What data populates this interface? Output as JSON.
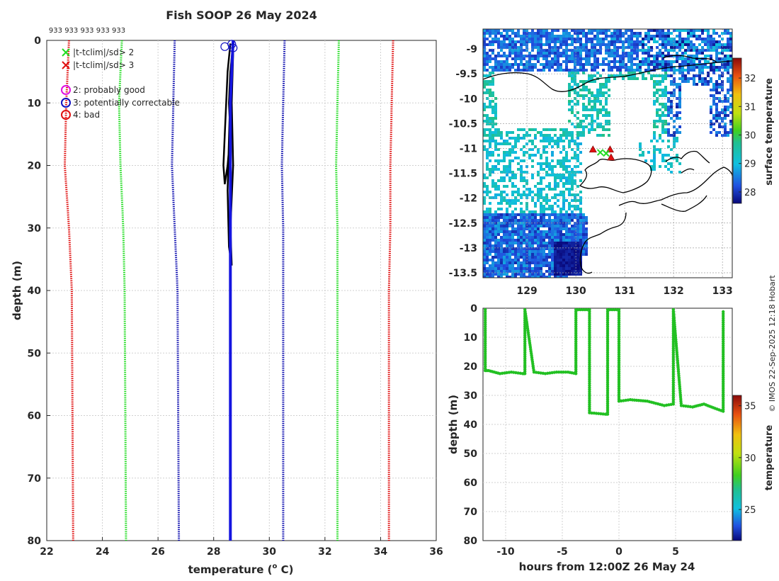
{
  "title": "Fish SOOP 26 May 2024",
  "ids_label": "933 933 933 933 933",
  "credit": "© IMOS 22-Sep-2025 12:18 Hobart",
  "chart_data": [
    {
      "id": "profile",
      "type": "line",
      "title": "Fish SOOP 26 May 2024",
      "xlabel": "temperature (",
      "xlabel_sup": "o",
      "xlabel_tail": " C)",
      "ylabel": "depth (m)",
      "xlim": [
        22,
        36
      ],
      "ylim": [
        80,
        0
      ],
      "xticks": [
        22,
        24,
        26,
        28,
        30,
        32,
        34,
        36
      ],
      "yticks": [
        0,
        10,
        20,
        30,
        40,
        50,
        60,
        70,
        80
      ],
      "legend": [
        {
          "label": "|t-tclim|/sd> 2",
          "marker": "x",
          "color": "#22dd22"
        },
        {
          "label": "|t-tclim|/sd> 3",
          "marker": "x",
          "color": "#e01010"
        },
        {
          "label": "2: probably good",
          "marker": "o",
          "color": "#e010e0"
        },
        {
          "label": "3: potentially correctable",
          "marker": "o",
          "color": "#1010c0"
        },
        {
          "label": "4: bad",
          "marker": "o",
          "color": "#e01010"
        }
      ],
      "envelopes": [
        {
          "name": "-3 sd",
          "color": "#e01010",
          "depth": [
            0,
            10,
            20,
            30,
            40,
            80
          ],
          "temp": [
            22.8,
            22.7,
            22.65,
            22.8,
            22.9,
            22.95
          ]
        },
        {
          "name": "-2 sd",
          "color": "#22dd22",
          "depth": [
            0,
            10,
            20,
            30,
            40,
            80
          ],
          "temp": [
            24.7,
            24.6,
            24.65,
            24.75,
            24.8,
            24.85
          ]
        },
        {
          "name": "-1 sd",
          "color": "#1010b0",
          "depth": [
            0,
            10,
            20,
            30,
            40,
            80
          ],
          "temp": [
            26.6,
            26.55,
            26.5,
            26.6,
            26.7,
            26.75
          ]
        },
        {
          "name": "+1 sd",
          "color": "#1010b0",
          "depth": [
            0,
            10,
            20,
            30,
            40,
            80
          ],
          "temp": [
            30.55,
            30.5,
            30.45,
            30.5,
            30.5,
            30.5
          ]
        },
        {
          "name": "+2 sd",
          "color": "#22dd22",
          "depth": [
            0,
            10,
            20,
            30,
            40,
            80
          ],
          "temp": [
            32.5,
            32.45,
            32.4,
            32.45,
            32.45,
            32.45
          ]
        },
        {
          "name": "+3 sd",
          "color": "#e01010",
          "depth": [
            0,
            10,
            20,
            30,
            40,
            80
          ],
          "temp": [
            34.45,
            34.4,
            34.35,
            34.35,
            34.3,
            34.3
          ]
        }
      ],
      "profiles": [
        {
          "name": "blue profile",
          "color": "#1515e0",
          "depth": [
            0,
            5,
            10,
            20,
            30,
            38,
            80
          ],
          "temp": [
            28.7,
            28.65,
            28.6,
            28.6,
            28.6,
            28.6,
            28.6
          ]
        },
        {
          "name": "black casts",
          "color": "#000000",
          "depth": [
            0.5,
            5,
            10,
            15,
            20,
            23,
            20,
            15,
            10,
            5,
            0.5,
            8,
            16,
            24,
            33,
            36,
            30,
            20,
            10,
            2
          ],
          "temp": [
            28.6,
            28.5,
            28.45,
            28.4,
            28.35,
            28.4,
            28.5,
            28.6,
            28.55,
            28.6,
            28.7,
            28.6,
            28.55,
            28.5,
            28.55,
            28.65,
            28.6,
            28.7,
            28.65,
            28.7
          ]
        }
      ],
      "flags": [
        {
          "temp": 28.4,
          "depth": 1.0,
          "color": "#1010c0"
        },
        {
          "temp": 28.65,
          "depth": 0.6,
          "color": "#1010c0"
        },
        {
          "temp": 28.7,
          "depth": 1.2,
          "color": "#1010c0"
        }
      ]
    },
    {
      "id": "sst_map",
      "type": "heatmap",
      "xlim": [
        128.1,
        133.2
      ],
      "ylim": [
        -13.6,
        -8.6
      ],
      "xticks": [
        129,
        130,
        131,
        132,
        133
      ],
      "yticks": [
        -9,
        -9.5,
        -10,
        -10.5,
        -11,
        -11.5,
        -12,
        -12.5,
        -13,
        -13.5
      ],
      "colorbar_label": "surface temperature",
      "colorbar_ticks": [
        28,
        29,
        30,
        31,
        32
      ],
      "colorbar_range": [
        27.6,
        32.7
      ],
      "stations": [
        {
          "lon": 130.35,
          "lat": -11.02,
          "marker": "triangle",
          "color": "#e01010"
        },
        {
          "lon": 130.7,
          "lat": -11.02,
          "marker": "triangle",
          "color": "#e01010"
        },
        {
          "lon": 130.72,
          "lat": -11.18,
          "marker": "triangle",
          "color": "#e01010"
        },
        {
          "lon": 130.5,
          "lat": -11.08,
          "marker": "x",
          "color": "#22dd22"
        },
        {
          "lon": 130.62,
          "lat": -11.1,
          "marker": "x",
          "color": "#22dd22"
        }
      ]
    },
    {
      "id": "depth_time",
      "type": "scatter",
      "xlabel": "hours from 12:00Z 26 May 24",
      "ylabel": "depth (m)",
      "xlim": [
        -12,
        10
      ],
      "ylim": [
        80,
        0
      ],
      "xticks": [
        -10,
        -5,
        0,
        5
      ],
      "yticks": [
        0,
        10,
        20,
        30,
        40,
        50,
        60,
        70,
        80
      ],
      "colorbar_label": "temperature",
      "colorbar_ticks": [
        25,
        30,
        35
      ],
      "colorbar_range": [
        22,
        36
      ],
      "hours": [
        -11.8,
        -11.8,
        -11.5,
        -10.5,
        -9.5,
        -8.5,
        -8.3,
        -8.3,
        -7.5,
        -6.5,
        -5.5,
        -4.5,
        -3.8,
        -3.8,
        -2.6,
        -2.6,
        -2.0,
        -1.2,
        -1.0,
        -1.0,
        0.0,
        0.0,
        1.0,
        2.5,
        4.0,
        4.8,
        4.8,
        5.5,
        6.5,
        7.5,
        8.5,
        9.2,
        9.2
      ],
      "depths": [
        0.5,
        21.5,
        21.5,
        22.5,
        22.0,
        22.5,
        22.5,
        0.5,
        22.0,
        22.5,
        22.0,
        22.0,
        22.5,
        0.5,
        0.5,
        36.0,
        36.2,
        36.5,
        36.5,
        0.5,
        0.5,
        32.0,
        31.5,
        32.0,
        33.5,
        33.0,
        0.5,
        33.5,
        34.0,
        33.0,
        34.5,
        35.5,
        0.5
      ]
    }
  ]
}
